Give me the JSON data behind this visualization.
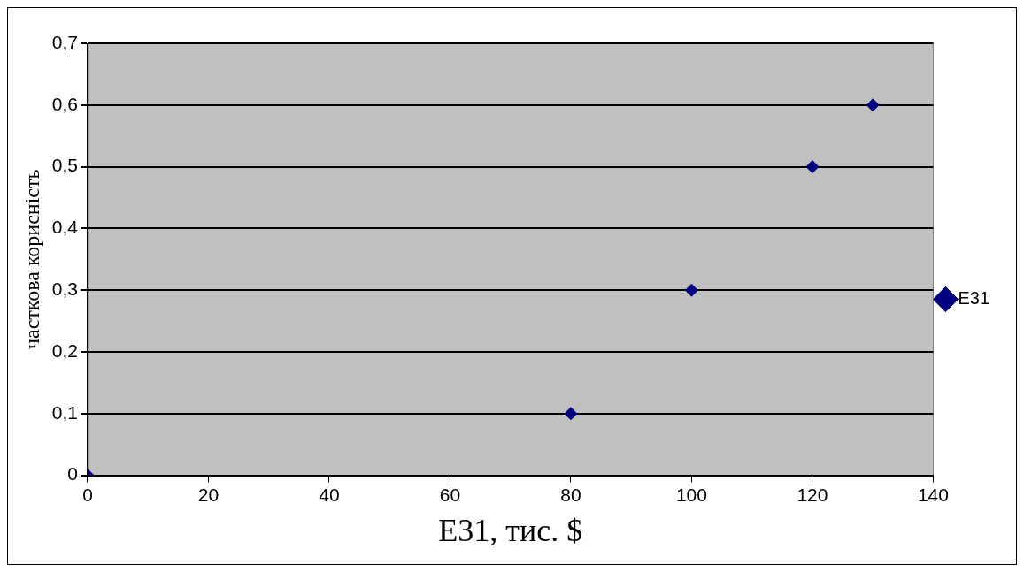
{
  "chart_data": {
    "type": "scatter",
    "xlabel": "E31, тис. $",
    "ylabel": "часткова корисність",
    "x": [
      0,
      80,
      100,
      120,
      130
    ],
    "series": [
      {
        "name": "E31",
        "color": "#000080",
        "values": [
          0,
          0.1,
          0.3,
          0.5,
          0.6
        ]
      }
    ],
    "xlim": [
      0,
      140
    ],
    "xticks": [
      0,
      20,
      40,
      60,
      80,
      100,
      120,
      140
    ],
    "ylim": [
      0,
      0.7
    ],
    "yticks": [
      0,
      {
        "value": 0.1,
        "label": "0,1"
      },
      {
        "value": 0.2,
        "label": "0,2"
      },
      {
        "value": 0.3,
        "label": "0,3"
      },
      {
        "value": 0.4,
        "label": "0,4"
      },
      {
        "value": 0.5,
        "label": "0,5"
      },
      {
        "value": 0.6,
        "label": "0,6"
      },
      {
        "value": 0.7,
        "label": "0,7"
      }
    ],
    "grid": "y",
    "legend": "right",
    "marker": "diamond"
  }
}
